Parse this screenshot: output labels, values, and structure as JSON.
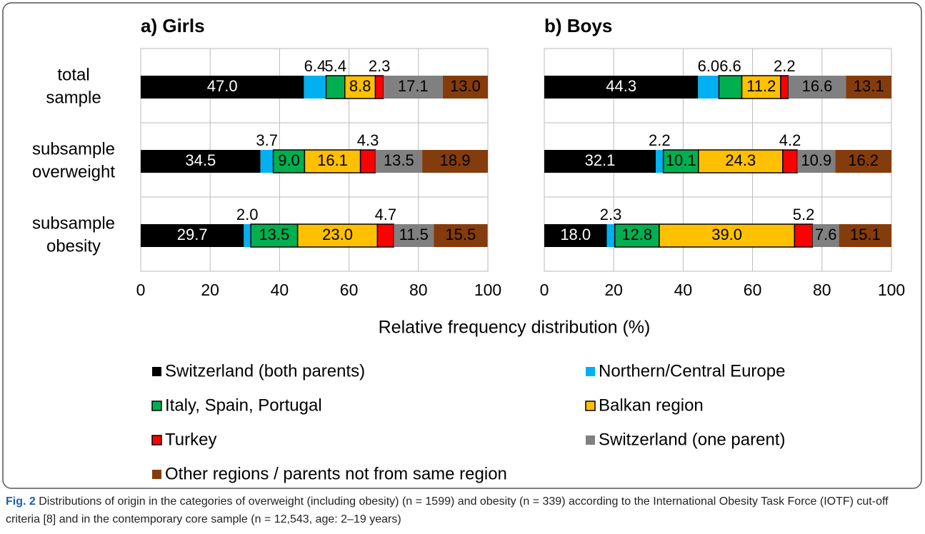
{
  "chart_data": {
    "type": "bar",
    "orientation": "horizontal",
    "stacked": true,
    "panels": [
      {
        "title": "a) Girls"
      },
      {
        "title": "b) Boys"
      }
    ],
    "categories": [
      [
        "total",
        "sample"
      ],
      [
        "subsample",
        "overweight"
      ],
      [
        "subsample",
        "obesity"
      ]
    ],
    "xlabel": "Relative frequency distribution (%)",
    "xlim": [
      0,
      100
    ],
    "xticks": [
      0,
      20,
      40,
      60,
      80,
      100
    ],
    "grid": true,
    "series": [
      {
        "name": "Switzerland (both parents)",
        "color": "#000000",
        "values": [
          [
            47.0,
            34.5,
            29.7
          ],
          [
            44.3,
            32.1,
            18.0
          ]
        ],
        "value_labels": [
          [
            "47.0",
            "34.5",
            "29.7"
          ],
          [
            "44.3",
            "32.1",
            "18.0"
          ]
        ]
      },
      {
        "name": "Northern/Central Europe",
        "color": "#00b0f0",
        "values": [
          [
            6.4,
            3.7,
            2.0
          ],
          [
            6.0,
            2.2,
            2.3
          ]
        ],
        "value_labels": [
          [
            "6.4",
            "3.7",
            "2.0"
          ],
          [
            "6.0",
            "2.2",
            "2.3"
          ]
        ]
      },
      {
        "name": "Italy, Spain, Portugal",
        "color": "#00b050",
        "edgecolor": "#000000",
        "values": [
          [
            5.4,
            9.0,
            13.5
          ],
          [
            6.6,
            10.1,
            12.8
          ]
        ],
        "value_labels": [
          [
            "5.4",
            "9.0",
            "13.5"
          ],
          [
            "6.6",
            "10.1",
            "12.8"
          ]
        ]
      },
      {
        "name": "Balkan region",
        "color": "#ffc000",
        "edgecolor": "#000000",
        "values": [
          [
            8.8,
            16.1,
            23.0
          ],
          [
            11.2,
            24.3,
            39.0
          ]
        ],
        "value_labels": [
          [
            "8.8",
            "16.1",
            "23.0"
          ],
          [
            "11.2",
            "24.3",
            "39.0"
          ]
        ]
      },
      {
        "name": "Turkey",
        "color": "#ff0000",
        "edgecolor": "#000000",
        "values": [
          [
            2.3,
            4.3,
            4.7
          ],
          [
            2.2,
            4.2,
            5.2
          ]
        ],
        "value_labels": [
          [
            "2.3",
            "4.3",
            "4.7"
          ],
          [
            "2.2",
            "4.2",
            "5.2"
          ]
        ]
      },
      {
        "name": "Switzerland (one parent)",
        "color": "#808080",
        "values": [
          [
            17.1,
            13.5,
            11.5
          ],
          [
            16.6,
            10.9,
            7.6
          ]
        ],
        "value_labels": [
          [
            "17.1",
            "13.5",
            "11.5"
          ],
          [
            "16.6",
            "10.9",
            "7.6"
          ]
        ]
      },
      {
        "name": "Other regions / parents not from same region",
        "color": "#843c0c",
        "values": [
          [
            13.0,
            18.9,
            15.5
          ],
          [
            13.1,
            16.2,
            15.1
          ]
        ],
        "value_labels": [
          [
            "13.0",
            "18.9",
            "15.5"
          ],
          [
            "13.1",
            "16.2",
            "15.1"
          ]
        ]
      }
    ],
    "caption": {
      "label": "Fig. 2",
      "text": "Distributions of origin in the categories of overweight (including obesity) (n = 1599) and obesity (n = 339) according to the International Obesity Task Force (IOTF) cut-off criteria [8] and in the contemporary core sample (n = 12,543, age: 2–19 years)"
    }
  }
}
